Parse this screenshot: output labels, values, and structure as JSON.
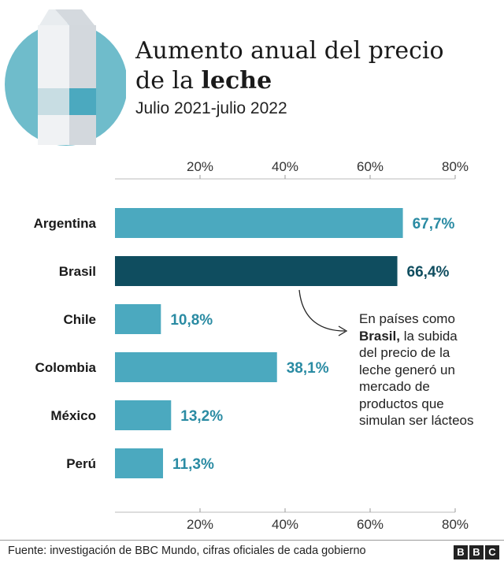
{
  "header": {
    "title_line1": "Aumento anual del precio",
    "title_line2_prefix": "de la ",
    "title_line2_bold": "leche",
    "subtitle": "Julio 2021-julio 2022"
  },
  "chart_data": {
    "type": "bar",
    "orientation": "horizontal",
    "categories": [
      "Argentina",
      "Brasil",
      "Chile",
      "Colombia",
      "México",
      "Perú"
    ],
    "values": [
      67.7,
      66.4,
      10.8,
      38.1,
      13.2,
      11.3
    ],
    "value_labels": [
      "67,7%",
      "66,4%",
      "10,8%",
      "38,1%",
      "13,2%",
      "11,3%"
    ],
    "highlight": "Brasil",
    "xlim": [
      0,
      80
    ],
    "xticks": [
      20,
      40,
      60,
      80
    ],
    "xtick_labels": [
      "20%",
      "40%",
      "60%",
      "80%"
    ],
    "axis_position": "top and bottom",
    "grid": false,
    "colors": {
      "bar": "#4ba9bf",
      "highlight_bar": "#0f4d5f",
      "label": "#2a8ba3",
      "highlight_label": "#0f4d5f"
    }
  },
  "annotation": {
    "line1": "En países como",
    "bold": "Brasil,",
    "line2_rest": " la subida",
    "line3": "del precio de la",
    "line4": "leche generó un",
    "line5": "mercado de",
    "line6": "productos que",
    "line7": "simulan ser lácteos"
  },
  "footer": {
    "source": "Fuente: investigación de BBC Mundo, cifras oficiales de cada gobierno",
    "logo_letters": [
      "B",
      "B",
      "C"
    ]
  }
}
